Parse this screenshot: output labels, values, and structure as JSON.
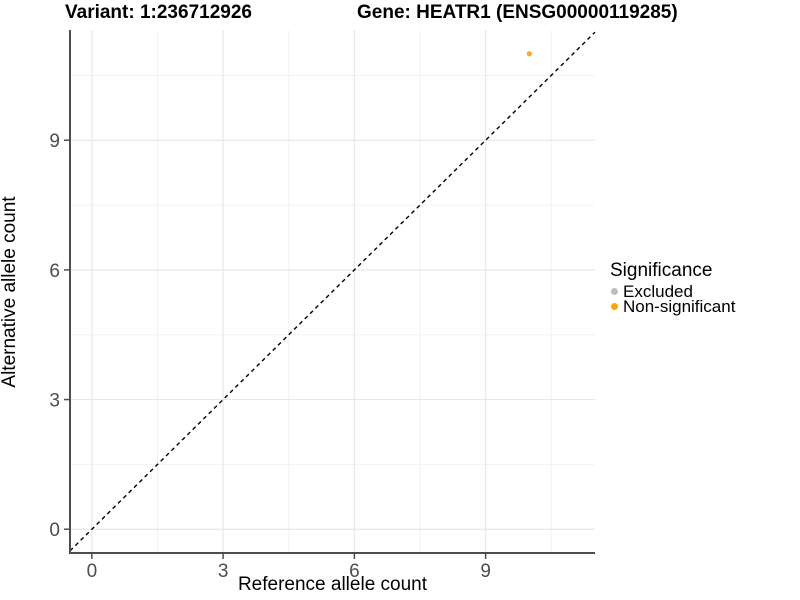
{
  "header": {
    "variant_title": "Variant: 1:236712926",
    "gene_title": "Gene: HEATR1 (ENSG00000119285)"
  },
  "chart_data": {
    "type": "scatter",
    "xlabel": "Reference allele count",
    "ylabel": "Alternative allele count",
    "xlim": [
      -0.5,
      11.5
    ],
    "ylim": [
      -0.55,
      11.55
    ],
    "x_ticks": [
      0,
      3,
      6,
      9
    ],
    "y_ticks": [
      0,
      3,
      6,
      9
    ],
    "x_minor_ticks": [
      1.5,
      4.5,
      7.5,
      10.5
    ],
    "y_minor_ticks": [
      1.5,
      4.5,
      7.5,
      10.5
    ],
    "grid": true,
    "identity_line": {
      "style": "dashed",
      "slope": 1,
      "intercept": 0
    },
    "series": [
      {
        "name": "Excluded",
        "color": "#bebebe",
        "points": []
      },
      {
        "name": "Non-significant",
        "color": "#ffa500",
        "points": [
          {
            "x": 10,
            "y": 11
          }
        ]
      }
    ],
    "legend": {
      "title": "Significance",
      "position": "right"
    }
  },
  "colors": {
    "axis_line": "#4d4d4d",
    "tick_mark": "#4d4d4d",
    "tick_text": "#4d4d4d",
    "grid_major": "#e7e7e7",
    "grid_minor": "#f3f3f3",
    "identity_line": "#000000",
    "background": "#ffffff"
  }
}
